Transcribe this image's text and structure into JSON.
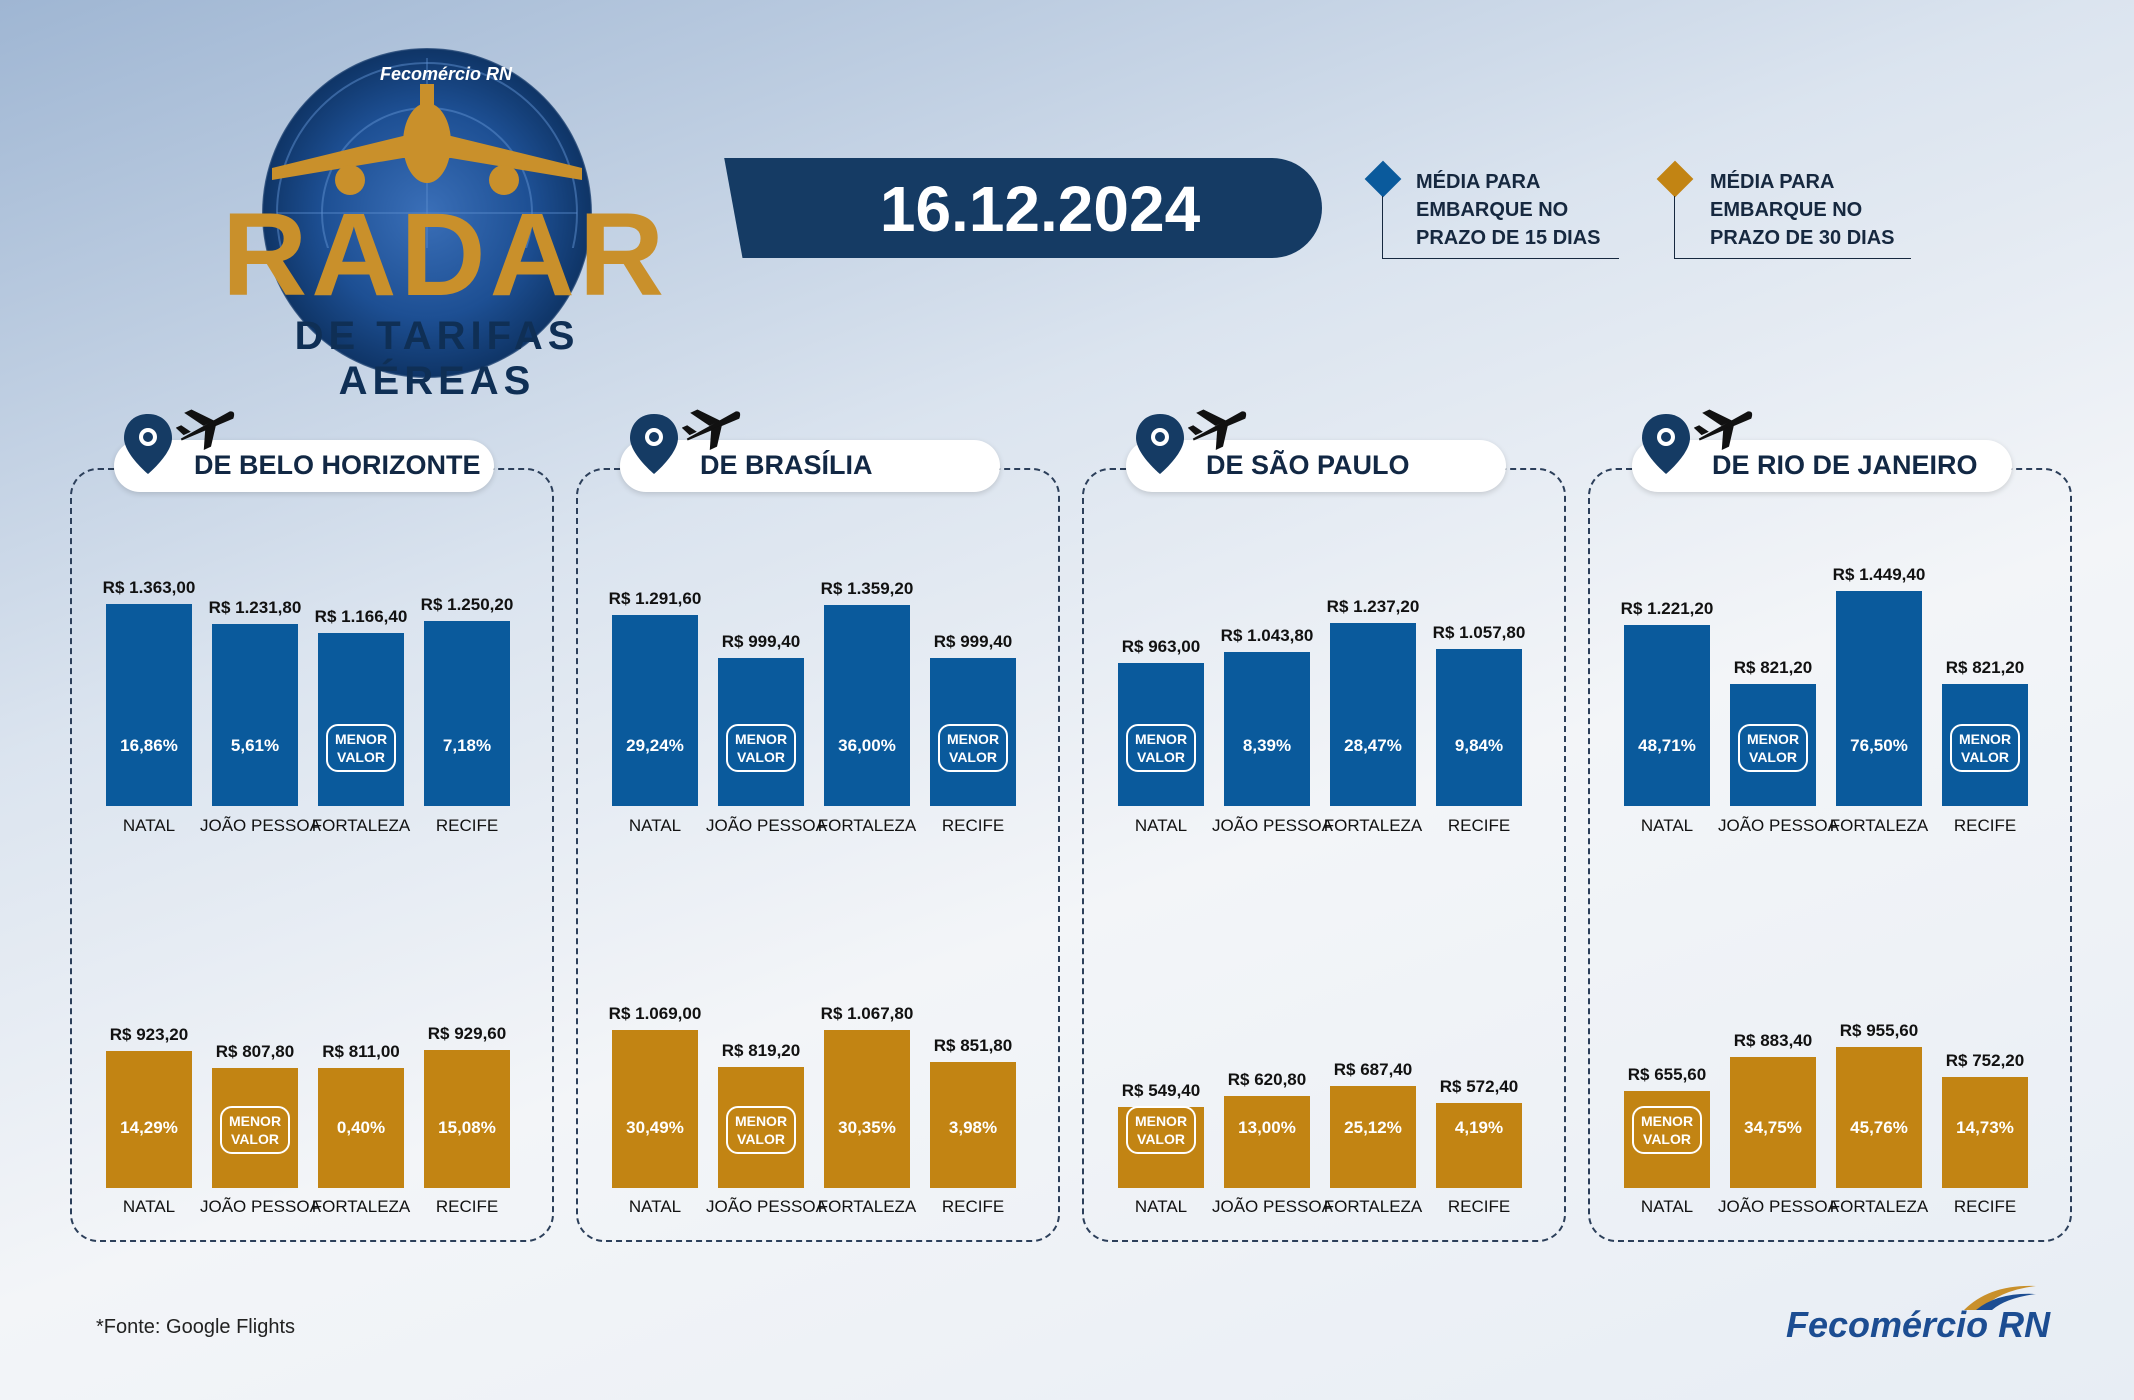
{
  "header": {
    "brand_small": "Fecomércio RN",
    "title": "RADAR",
    "subtitle": "DE TARIFAS AÉREAS",
    "date": "16.12.2024"
  },
  "legend": [
    {
      "text": "MÉDIA PARA\nEMBARQUE NO\nPRAZO DE 15 DIAS",
      "color": "#0a5a9c"
    },
    {
      "text": "MÉDIA PARA\nEMBARQUE NO\nPRAZO DE 30 DIAS",
      "color": "#c28413"
    }
  ],
  "colors": {
    "blue": "#0a5a9c",
    "gold": "#c28413"
  },
  "badge_text": "MENOR\nVALOR",
  "chart_data": [
    {
      "type": "bar",
      "title": "DE BELO HORIZONTE",
      "categories": [
        "NATAL",
        "JOÃO PESSOA",
        "FORTALEZA",
        "RECIFE"
      ],
      "series": [
        {
          "name": "MÉDIA PARA EMBARQUE NO PRAZO DE 15 DIAS",
          "values": [
            1363.0,
            1231.8,
            1166.4,
            1250.2
          ],
          "labels": [
            "R$ 1.363,00",
            "R$ 1.231,80",
            "R$ 1.166,40",
            "R$ 1.250,20"
          ],
          "pct": [
            "16,86%",
            "5,61%",
            "",
            "7,18%"
          ],
          "lowest_index": 2
        },
        {
          "name": "MÉDIA PARA EMBARQUE NO PRAZO DE 30 DIAS",
          "values": [
            923.2,
            807.8,
            811.0,
            929.6
          ],
          "labels": [
            "R$ 923,20",
            "R$ 807,80",
            "R$ 811,00",
            "R$ 929,60"
          ],
          "pct": [
            "14,29%",
            "",
            "0,40%",
            "15,08%"
          ],
          "lowest_index": 1
        }
      ]
    },
    {
      "type": "bar",
      "title": "DE BRASÍLIA",
      "categories": [
        "NATAL",
        "JOÃO PESSOA",
        "FORTALEZA",
        "RECIFE"
      ],
      "series": [
        {
          "name": "MÉDIA PARA EMBARQUE NO PRAZO DE 15 DIAS",
          "values": [
            1291.6,
            999.4,
            1359.2,
            999.4
          ],
          "labels": [
            "R$ 1.291,60",
            "R$ 999,40",
            "R$ 1.359,20",
            "R$ 999,40"
          ],
          "pct": [
            "29,24%",
            "",
            "36,00%",
            ""
          ],
          "lowest_index": [
            1,
            3
          ]
        },
        {
          "name": "MÉDIA PARA EMBARQUE NO PRAZO DE 30 DIAS",
          "values": [
            1069.0,
            819.2,
            1067.8,
            851.8
          ],
          "labels": [
            "R$ 1.069,00",
            "R$ 819,20",
            "R$ 1.067,80",
            "R$ 851,80"
          ],
          "pct": [
            "30,49%",
            "",
            "30,35%",
            "3,98%"
          ],
          "lowest_index": 1
        }
      ]
    },
    {
      "type": "bar",
      "title": "DE SÃO PAULO",
      "categories": [
        "NATAL",
        "JOÃO PESSOA",
        "FORTALEZA",
        "RECIFE"
      ],
      "series": [
        {
          "name": "MÉDIA PARA EMBARQUE NO PRAZO DE 15 DIAS",
          "values": [
            963.0,
            1043.8,
            1237.2,
            1057.8
          ],
          "labels": [
            "R$ 963,00",
            "R$ 1.043,80",
            "R$ 1.237,20",
            "R$ 1.057,80"
          ],
          "pct": [
            "",
            "8,39%",
            "28,47%",
            "9,84%"
          ],
          "lowest_index": 0
        },
        {
          "name": "MÉDIA PARA EMBARQUE NO PRAZO DE 30 DIAS",
          "values": [
            549.4,
            620.8,
            687.4,
            572.4
          ],
          "labels": [
            "R$ 549,40",
            "R$ 620,80",
            "R$ 687,40",
            "R$ 572,40"
          ],
          "pct": [
            "",
            "13,00%",
            "25,12%",
            "4,19%"
          ],
          "lowest_index": 0
        }
      ]
    },
    {
      "type": "bar",
      "title": "DE RIO DE JANEIRO",
      "categories": [
        "NATAL",
        "JOÃO PESSOA",
        "FORTALEZA",
        "RECIFE"
      ],
      "series": [
        {
          "name": "MÉDIA PARA EMBARQUE NO PRAZO DE 15 DIAS",
          "values": [
            1221.2,
            821.2,
            1449.4,
            821.2
          ],
          "labels": [
            "R$ 1.221,20",
            "R$ 821,20",
            "R$ 1.449,40",
            "R$ 821,20"
          ],
          "pct": [
            "48,71%",
            "",
            "76,50%",
            ""
          ],
          "lowest_index": [
            1,
            3
          ]
        },
        {
          "name": "MÉDIA PARA EMBARQUE NO PRAZO DE 30 DIAS",
          "values": [
            655.6,
            883.4,
            955.6,
            752.2
          ],
          "labels": [
            "R$ 655,60",
            "R$ 883,40",
            "R$ 955,60",
            "R$ 752,20"
          ],
          "pct": [
            "",
            "34,75%",
            "45,76%",
            "14,73%"
          ],
          "lowest_index": 0
        }
      ]
    }
  ],
  "footer": {
    "source": "*Fonte: Google Flights",
    "brand": "Fecomércio RN"
  }
}
